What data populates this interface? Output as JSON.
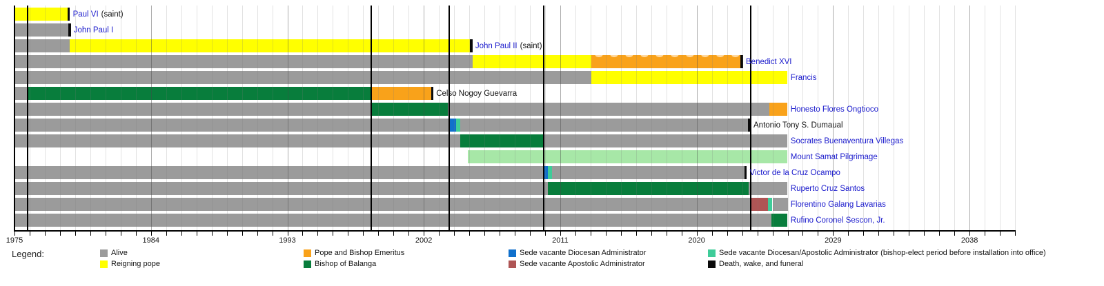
{
  "chart_data": {
    "type": "timeline",
    "description_visible": false,
    "axis": {
      "start": 1975,
      "end": 2041,
      "tick_interval_years": 1,
      "label_interval_years": 9,
      "tick_labels": [
        "1975",
        "1984",
        "1993",
        "2002",
        "2011",
        "2020",
        "2029",
        "2038"
      ]
    },
    "colors": {
      "alive": "#9B9B9B",
      "reigning_pope": "#FFFF00",
      "pope_bishop_emeritus": "#F9A21A",
      "bishop_of_balanga": "#087D3C",
      "sv_diocesan_admin": "#1070CC",
      "sv_apostolic_admin": "#AF5555",
      "sv_bishop_elect": "#3FCC99",
      "death_wake_funeral": "#0B0B0B",
      "pilgrimage": "#A7E7A7",
      "link_text": "#1A1ACC",
      "plain_text": "#111111"
    },
    "event_lines": [
      1975.82,
      1998.49,
      2003.63,
      2009.87,
      2023.52
    ],
    "rows": [
      {
        "name": "Paul VI",
        "suffix": "(saint)",
        "link": true,
        "label_year": 1978.85,
        "segments": [
          {
            "key": "reigning_pope",
            "from": 1975.0,
            "to": 1978.5
          },
          {
            "key": "death_wake_funeral",
            "from": 1978.5,
            "to": 1978.66
          }
        ]
      },
      {
        "name": "John Paul I",
        "suffix": "",
        "link": true,
        "label_year": 1978.9,
        "segments": [
          {
            "key": "alive",
            "from": 1975.0,
            "to": 1978.55
          },
          {
            "key": "death_wake_funeral",
            "from": 1978.55,
            "to": 1978.72
          }
        ]
      },
      {
        "name": "John Paul II",
        "suffix": "(saint)",
        "link": true,
        "label_year": 2005.4,
        "segments": [
          {
            "key": "alive",
            "from": 1975.0,
            "to": 1978.62
          },
          {
            "key": "reigning_pope",
            "from": 1978.62,
            "to": 2005.05
          },
          {
            "key": "death_wake_funeral",
            "from": 2005.05,
            "to": 2005.22
          }
        ]
      },
      {
        "name": "Benedict XVI",
        "suffix": "",
        "link": true,
        "label_year": 2023.25,
        "segments": [
          {
            "key": "alive",
            "from": 1975.0,
            "to": 2005.22
          },
          {
            "key": "reigning_pope",
            "from": 2005.22,
            "to": 2013.05
          },
          {
            "key": "pope_bishop_emeritus",
            "from": 2013.05,
            "to": 2022.9,
            "pattern": "scallop"
          },
          {
            "key": "death_wake_funeral",
            "from": 2022.9,
            "to": 2023.08
          }
        ]
      },
      {
        "name": "Francis",
        "suffix": "",
        "link": true,
        "label_year": 2026.2,
        "segments": [
          {
            "key": "alive",
            "from": 1975.0,
            "to": 2013.05
          },
          {
            "key": "reigning_pope",
            "from": 2013.05,
            "to": 2026.0
          }
        ]
      },
      {
        "name": "Celso Nogoy Guevarra",
        "suffix": "",
        "link": false,
        "label_year": 2002.82,
        "segments": [
          {
            "key": "alive",
            "from": 1975.0,
            "to": 1975.82
          },
          {
            "key": "bishop_of_balanga",
            "from": 1975.82,
            "to": 1998.49
          },
          {
            "key": "pope_bishop_emeritus",
            "from": 1998.49,
            "to": 2002.5
          },
          {
            "key": "death_wake_funeral",
            "from": 2002.5,
            "to": 2002.64
          }
        ]
      },
      {
        "name": "Honesto Flores Ongtioco",
        "suffix": "",
        "link": true,
        "label_year": 2026.2,
        "segments": [
          {
            "key": "alive",
            "from": 1975.0,
            "to": 1998.49
          },
          {
            "key": "bishop_of_balanga",
            "from": 1998.49,
            "to": 2003.6
          },
          {
            "key": "alive",
            "from": 2003.6,
            "to": 2024.8
          },
          {
            "key": "pope_bishop_emeritus",
            "from": 2024.8,
            "to": 2026.0
          }
        ]
      },
      {
        "name": "Antonio Tony S. Dumaual",
        "suffix": "",
        "link": false,
        "label_year": 2023.75,
        "segments": [
          {
            "key": "alive",
            "from": 1975.0,
            "to": 2003.63
          },
          {
            "key": "sv_diocesan_admin",
            "from": 2003.63,
            "to": 2004.15
          },
          {
            "key": "sv_bishop_elect",
            "from": 2004.15,
            "to": 2004.42
          },
          {
            "key": "alive",
            "from": 2004.42,
            "to": 2023.4
          },
          {
            "key": "death_wake_funeral",
            "from": 2023.4,
            "to": 2023.58
          }
        ]
      },
      {
        "name": "Socrates Buenaventura Villegas",
        "suffix": "",
        "link": true,
        "label_year": 2026.2,
        "segments": [
          {
            "key": "alive",
            "from": 1975.0,
            "to": 2004.42
          },
          {
            "key": "bishop_of_balanga",
            "from": 2004.42,
            "to": 2009.87
          },
          {
            "key": "alive",
            "from": 2009.87,
            "to": 2026.0
          }
        ]
      },
      {
        "name": "Mount Samat Pilgrimage",
        "suffix": "",
        "link": true,
        "label_year": 2026.2,
        "segments": [
          {
            "key": "pilgrimage",
            "from": 2004.9,
            "to": 2026.0
          }
        ]
      },
      {
        "name": "Victor de la Cruz Ocampo",
        "suffix": "",
        "link": true,
        "label_year": 2023.5,
        "segments": [
          {
            "key": "alive",
            "from": 1975.0,
            "to": 2009.87
          },
          {
            "key": "sv_diocesan_admin",
            "from": 2009.87,
            "to": 2010.18
          },
          {
            "key": "sv_bishop_elect",
            "from": 2010.18,
            "to": 2010.45
          },
          {
            "key": "alive",
            "from": 2010.45,
            "to": 2023.15
          },
          {
            "key": "death_wake_funeral",
            "from": 2023.15,
            "to": 2023.32
          }
        ]
      },
      {
        "name": "Ruperto Cruz Santos",
        "suffix": "",
        "link": true,
        "label_year": 2026.2,
        "segments": [
          {
            "key": "alive",
            "from": 1975.0,
            "to": 2010.18
          },
          {
            "key": "bishop_of_balanga",
            "from": 2010.18,
            "to": 2023.45
          },
          {
            "key": "alive",
            "from": 2023.45,
            "to": 2026.0
          }
        ]
      },
      {
        "name": "Florentino Galang Lavarias",
        "suffix": "",
        "link": true,
        "label_year": 2026.2,
        "segments": [
          {
            "key": "alive",
            "from": 1975.0,
            "to": 2023.52
          },
          {
            "key": "sv_apostolic_admin",
            "from": 2023.52,
            "to": 2024.72
          },
          {
            "key": "sv_bishop_elect",
            "from": 2024.72,
            "to": 2025.0
          },
          {
            "key": "alive",
            "from": 2025.0,
            "to": 2026.0
          }
        ]
      },
      {
        "name": "Rufino Coronel Sescon, Jr.",
        "suffix": "",
        "link": true,
        "label_year": 2026.2,
        "segments": [
          {
            "key": "alive",
            "from": 1975.0,
            "to": 2024.95
          },
          {
            "key": "bishop_of_balanga",
            "from": 2024.95,
            "to": 2026.0
          }
        ]
      }
    ],
    "legend": {
      "heading": "Legend:",
      "items": [
        {
          "key": "alive",
          "label": "Alive",
          "col": 0,
          "row": 0
        },
        {
          "key": "reigning_pope",
          "label": "Reigning pope",
          "col": 0,
          "row": 1
        },
        {
          "key": "pope_bishop_emeritus",
          "label": "Pope and Bishop Emeritus",
          "col": 1,
          "row": 0
        },
        {
          "key": "bishop_of_balanga",
          "label": "Bishop of Balanga",
          "col": 1,
          "row": 1
        },
        {
          "key": "sv_diocesan_admin",
          "label": "Sede vacante Diocesan Administrator",
          "col": 2,
          "row": 0
        },
        {
          "key": "sv_apostolic_admin",
          "label": "Sede vacante Apostolic Administrator",
          "col": 2,
          "row": 1
        },
        {
          "key": "sv_bishop_elect",
          "label": "Sede vacante Diocesan/Apostolic Administrator (bishop-elect period before installation into office)",
          "col": 3,
          "row": 0
        },
        {
          "key": "death_wake_funeral",
          "label": "Death, wake, and funeral",
          "col": 3,
          "row": 1
        }
      ]
    }
  }
}
